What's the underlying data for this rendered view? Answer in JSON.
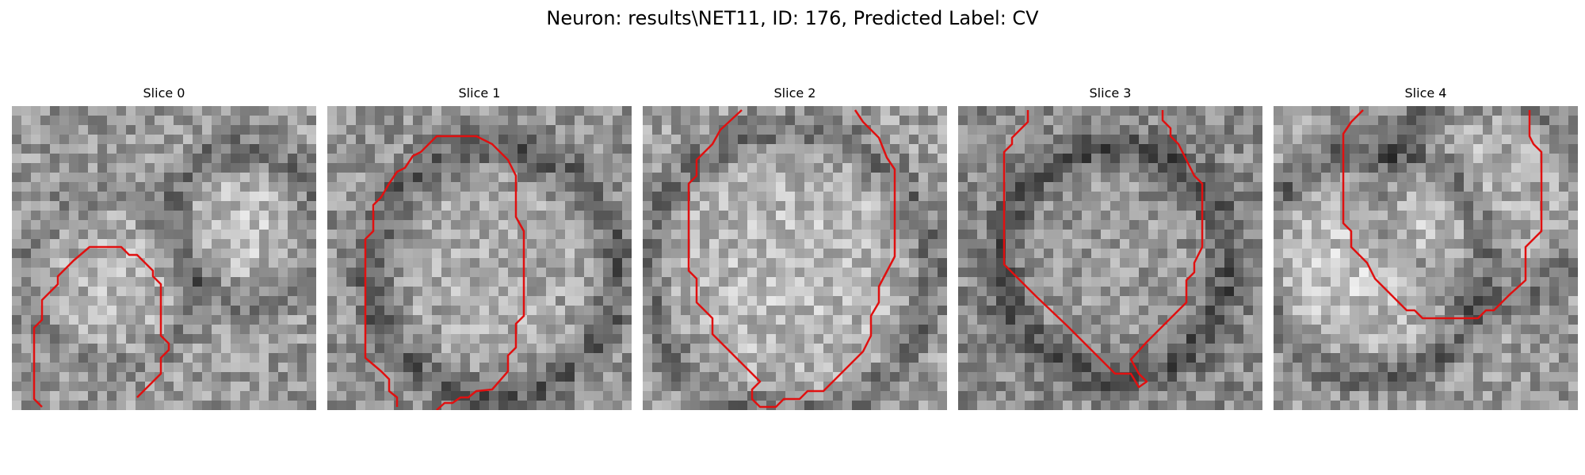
{
  "figure": {
    "suptitle": "Neuron: results\\NET11, ID: 176, Predicted Label: CV"
  },
  "panels": [
    {
      "title": "Slice 0"
    },
    {
      "title": "Slice 1"
    },
    {
      "title": "Slice 2"
    },
    {
      "title": "Slice 3"
    },
    {
      "title": "Slice 4"
    }
  ],
  "style": {
    "contour_color": "#e01010",
    "colormap": "grayscale"
  }
}
